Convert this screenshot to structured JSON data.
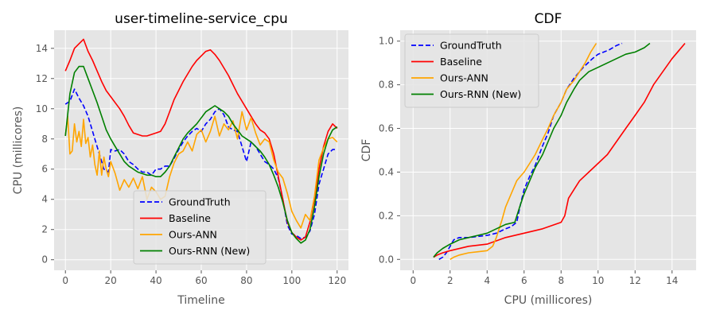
{
  "chart_data": [
    {
      "type": "line",
      "title": "user-timeline-service_cpu",
      "xlabel": "Timeline",
      "ylabel": "CPU (millicores)",
      "xlim": [
        -5,
        125
      ],
      "ylim": [
        -0.7,
        15.2
      ],
      "xticks": [
        0,
        20,
        40,
        60,
        80,
        100,
        120
      ],
      "yticks": [
        0,
        2,
        4,
        6,
        8,
        10,
        12,
        14
      ],
      "grid": true,
      "legend_position": "lower-center",
      "series": [
        {
          "name": "GroundTruth",
          "color": "#0000ff",
          "dash": "dashed",
          "x": [
            0,
            2,
            4,
            6,
            8,
            10,
            12,
            13,
            15,
            17,
            19,
            20,
            22,
            24,
            26,
            28,
            30,
            32,
            34,
            36,
            38,
            40,
            42,
            44,
            46,
            48,
            50,
            52,
            54,
            56,
            58,
            60,
            62,
            64,
            66,
            68,
            70,
            72,
            74,
            76,
            78,
            80,
            82,
            84,
            86,
            88,
            90,
            92,
            94,
            96,
            98,
            100,
            102,
            104,
            106,
            108,
            110,
            112,
            114,
            116,
            118,
            120
          ],
          "values": [
            10.3,
            10.5,
            11.3,
            10.7,
            10.2,
            9.5,
            8.5,
            8.0,
            7.0,
            6.0,
            5.8,
            7.3,
            7.2,
            7.3,
            7.0,
            6.5,
            6.3,
            6.0,
            5.8,
            5.8,
            5.6,
            6.0,
            6.0,
            6.2,
            6.2,
            6.7,
            7.3,
            7.8,
            8.2,
            8.5,
            8.7,
            8.5,
            9.0,
            9.3,
            9.8,
            10.0,
            9.6,
            8.8,
            8.6,
            8.5,
            7.5,
            6.5,
            7.8,
            7.5,
            7.0,
            6.5,
            6.3,
            6.0,
            5.4,
            4.0,
            2.3,
            1.7,
            1.6,
            1.4,
            1.5,
            1.9,
            3.0,
            5.0,
            6.0,
            7.0,
            7.3,
            7.3
          ]
        },
        {
          "name": "Baseline",
          "color": "#ff0000",
          "dash": "solid",
          "x": [
            0,
            2,
            4,
            6,
            8,
            10,
            12,
            14,
            16,
            18,
            20,
            22,
            24,
            26,
            28,
            30,
            32,
            34,
            36,
            38,
            40,
            42,
            44,
            46,
            48,
            50,
            52,
            54,
            56,
            58,
            60,
            62,
            64,
            66,
            68,
            70,
            72,
            74,
            76,
            78,
            80,
            82,
            84,
            86,
            88,
            90,
            92,
            94,
            96,
            98,
            100,
            102,
            104,
            106,
            108,
            110,
            112,
            114,
            116,
            118,
            120
          ],
          "values": [
            12.5,
            13.2,
            14.0,
            14.3,
            14.6,
            13.8,
            13.2,
            12.5,
            11.8,
            11.2,
            10.8,
            10.4,
            10.0,
            9.5,
            8.9,
            8.4,
            8.3,
            8.2,
            8.2,
            8.3,
            8.4,
            8.5,
            9.0,
            9.8,
            10.6,
            11.2,
            11.8,
            12.3,
            12.8,
            13.2,
            13.5,
            13.8,
            13.9,
            13.6,
            13.2,
            12.7,
            12.2,
            11.6,
            11.0,
            10.5,
            10.0,
            9.5,
            9.0,
            8.6,
            8.4,
            8.0,
            7.0,
            5.5,
            4.0,
            2.5,
            1.8,
            1.5,
            1.3,
            1.5,
            2.5,
            4.0,
            6.0,
            7.5,
            8.5,
            9.0,
            8.7
          ]
        },
        {
          "name": "Ours-ANN",
          "color": "#ffa500",
          "dash": "solid",
          "x": [
            0,
            1,
            2,
            3,
            4,
            5,
            6,
            7,
            8,
            9,
            10,
            11,
            12,
            13,
            14,
            15,
            16,
            17,
            18,
            19,
            20,
            22,
            24,
            26,
            28,
            30,
            32,
            34,
            36,
            38,
            40,
            42,
            44,
            46,
            48,
            50,
            52,
            54,
            56,
            58,
            60,
            62,
            64,
            66,
            68,
            70,
            72,
            74,
            76,
            78,
            80,
            82,
            84,
            86,
            88,
            90,
            92,
            94,
            96,
            98,
            100,
            102,
            104,
            106,
            108,
            110,
            112,
            114,
            116,
            118,
            120
          ],
          "values": [
            8.2,
            9.5,
            7.0,
            7.2,
            9.0,
            7.8,
            8.5,
            7.5,
            9.3,
            7.7,
            8.1,
            6.8,
            7.6,
            6.3,
            5.6,
            7.2,
            5.6,
            6.8,
            6.0,
            5.5,
            6.5,
            5.7,
            4.6,
            5.3,
            4.8,
            5.4,
            4.7,
            5.5,
            4.0,
            4.8,
            4.5,
            4.0,
            4.2,
            5.5,
            6.4,
            7.0,
            7.2,
            7.8,
            7.2,
            8.3,
            8.6,
            7.8,
            8.5,
            9.5,
            8.2,
            9.0,
            8.6,
            9.2,
            8.0,
            9.8,
            8.6,
            9.4,
            8.4,
            7.6,
            8.0,
            7.8,
            6.6,
            5.8,
            5.4,
            4.4,
            3.2,
            2.6,
            2.1,
            3.0,
            2.6,
            4.2,
            6.6,
            7.4,
            8.0,
            8.1,
            7.8
          ]
        },
        {
          "name": "Ours-RNN (New)",
          "color": "#008000",
          "dash": "solid",
          "x": [
            0,
            2,
            4,
            6,
            8,
            10,
            12,
            14,
            16,
            18,
            20,
            22,
            24,
            26,
            28,
            30,
            32,
            34,
            36,
            38,
            40,
            42,
            44,
            46,
            48,
            50,
            52,
            54,
            56,
            58,
            60,
            62,
            64,
            66,
            68,
            70,
            72,
            74,
            76,
            78,
            80,
            82,
            84,
            86,
            88,
            90,
            92,
            94,
            96,
            98,
            100,
            102,
            104,
            106,
            108,
            110,
            112,
            114,
            116,
            118,
            120
          ],
          "values": [
            8.2,
            11.0,
            12.4,
            12.8,
            12.8,
            12.0,
            11.2,
            10.4,
            9.5,
            8.6,
            8.0,
            7.5,
            7.0,
            6.5,
            6.2,
            6.0,
            5.8,
            5.7,
            5.6,
            5.6,
            5.5,
            5.5,
            5.8,
            6.2,
            6.8,
            7.4,
            8.0,
            8.4,
            8.7,
            9.0,
            9.4,
            9.8,
            10.0,
            10.2,
            10.0,
            9.8,
            9.5,
            9.0,
            8.6,
            8.2,
            8.0,
            7.8,
            7.5,
            7.2,
            6.8,
            6.3,
            5.6,
            4.8,
            3.8,
            2.6,
            1.8,
            1.4,
            1.1,
            1.3,
            2.0,
            3.5,
            5.5,
            7.0,
            8.0,
            8.6,
            8.8
          ]
        }
      ]
    },
    {
      "type": "line",
      "title": "CDF",
      "xlabel": "CPU (millicores)",
      "ylabel": "CDF",
      "xlim": [
        -0.7,
        15.3
      ],
      "ylim": [
        -0.05,
        1.05
      ],
      "xticks": [
        0,
        2,
        4,
        6,
        8,
        10,
        12,
        14
      ],
      "yticks": [
        0.0,
        0.2,
        0.4,
        0.6,
        0.8,
        1.0
      ],
      "ytick_labels": [
        "0.0",
        "0.2",
        "0.4",
        "0.6",
        "0.8",
        "1.0"
      ],
      "grid": true,
      "legend_position": "top-left",
      "series": [
        {
          "name": "GroundTruth",
          "color": "#0000ff",
          "dash": "dashed",
          "x": [
            1.4,
            1.6,
            1.8,
            2.0,
            2.2,
            2.5,
            3.0,
            3.5,
            4.0,
            4.5,
            5.0,
            5.3,
            5.6,
            5.8,
            6.0,
            6.3,
            6.6,
            7.0,
            7.3,
            7.6,
            8.0,
            8.3,
            8.7,
            9.2,
            9.7,
            10.0,
            10.3,
            10.6,
            11.0,
            11.3
          ],
          "values": [
            0.0,
            0.01,
            0.03,
            0.06,
            0.09,
            0.1,
            0.1,
            0.105,
            0.11,
            0.12,
            0.14,
            0.15,
            0.17,
            0.25,
            0.32,
            0.38,
            0.43,
            0.52,
            0.58,
            0.66,
            0.72,
            0.78,
            0.83,
            0.88,
            0.92,
            0.94,
            0.95,
            0.96,
            0.98,
            0.99
          ]
        },
        {
          "name": "Baseline",
          "color": "#ff0000",
          "dash": "solid",
          "x": [
            1.1,
            1.3,
            1.6,
            2.0,
            3.0,
            4.0,
            5.0,
            6.0,
            7.0,
            8.0,
            8.2,
            8.4,
            8.7,
            9.0,
            9.5,
            10.0,
            10.5,
            11.0,
            11.5,
            12.0,
            12.5,
            13.0,
            13.5,
            14.0,
            14.4,
            14.7
          ],
          "values": [
            0.01,
            0.02,
            0.03,
            0.04,
            0.06,
            0.07,
            0.1,
            0.12,
            0.14,
            0.17,
            0.2,
            0.28,
            0.32,
            0.36,
            0.4,
            0.44,
            0.48,
            0.54,
            0.6,
            0.66,
            0.72,
            0.8,
            0.86,
            0.92,
            0.96,
            0.99
          ]
        },
        {
          "name": "Ours-ANN",
          "color": "#ffa500",
          "dash": "solid",
          "x": [
            2.0,
            2.2,
            2.5,
            3.0,
            3.5,
            4.0,
            4.3,
            4.5,
            4.8,
            5.0,
            5.3,
            5.6,
            5.8,
            6.0,
            6.3,
            6.6,
            7.0,
            7.3,
            7.6,
            8.0,
            8.3,
            8.7,
            9.0,
            9.3,
            9.6,
            9.9
          ],
          "values": [
            0.0,
            0.01,
            0.02,
            0.03,
            0.035,
            0.04,
            0.06,
            0.1,
            0.18,
            0.24,
            0.3,
            0.36,
            0.38,
            0.4,
            0.44,
            0.48,
            0.55,
            0.6,
            0.66,
            0.72,
            0.78,
            0.82,
            0.86,
            0.9,
            0.95,
            0.99
          ]
        },
        {
          "name": "Ours-RNN (New)",
          "color": "#008000",
          "dash": "solid",
          "x": [
            1.1,
            1.3,
            1.6,
            2.0,
            2.5,
            3.0,
            3.5,
            4.0,
            4.5,
            5.0,
            5.5,
            5.8,
            6.0,
            6.3,
            6.6,
            7.0,
            7.3,
            7.6,
            8.0,
            8.3,
            8.7,
            9.0,
            9.5,
            10.0,
            10.5,
            11.0,
            11.5,
            12.0,
            12.5,
            12.8
          ],
          "values": [
            0.01,
            0.03,
            0.05,
            0.07,
            0.09,
            0.1,
            0.11,
            0.12,
            0.14,
            0.16,
            0.17,
            0.25,
            0.3,
            0.36,
            0.42,
            0.48,
            0.54,
            0.6,
            0.66,
            0.72,
            0.78,
            0.82,
            0.86,
            0.88,
            0.9,
            0.92,
            0.94,
            0.95,
            0.97,
            0.99
          ]
        }
      ]
    }
  ]
}
